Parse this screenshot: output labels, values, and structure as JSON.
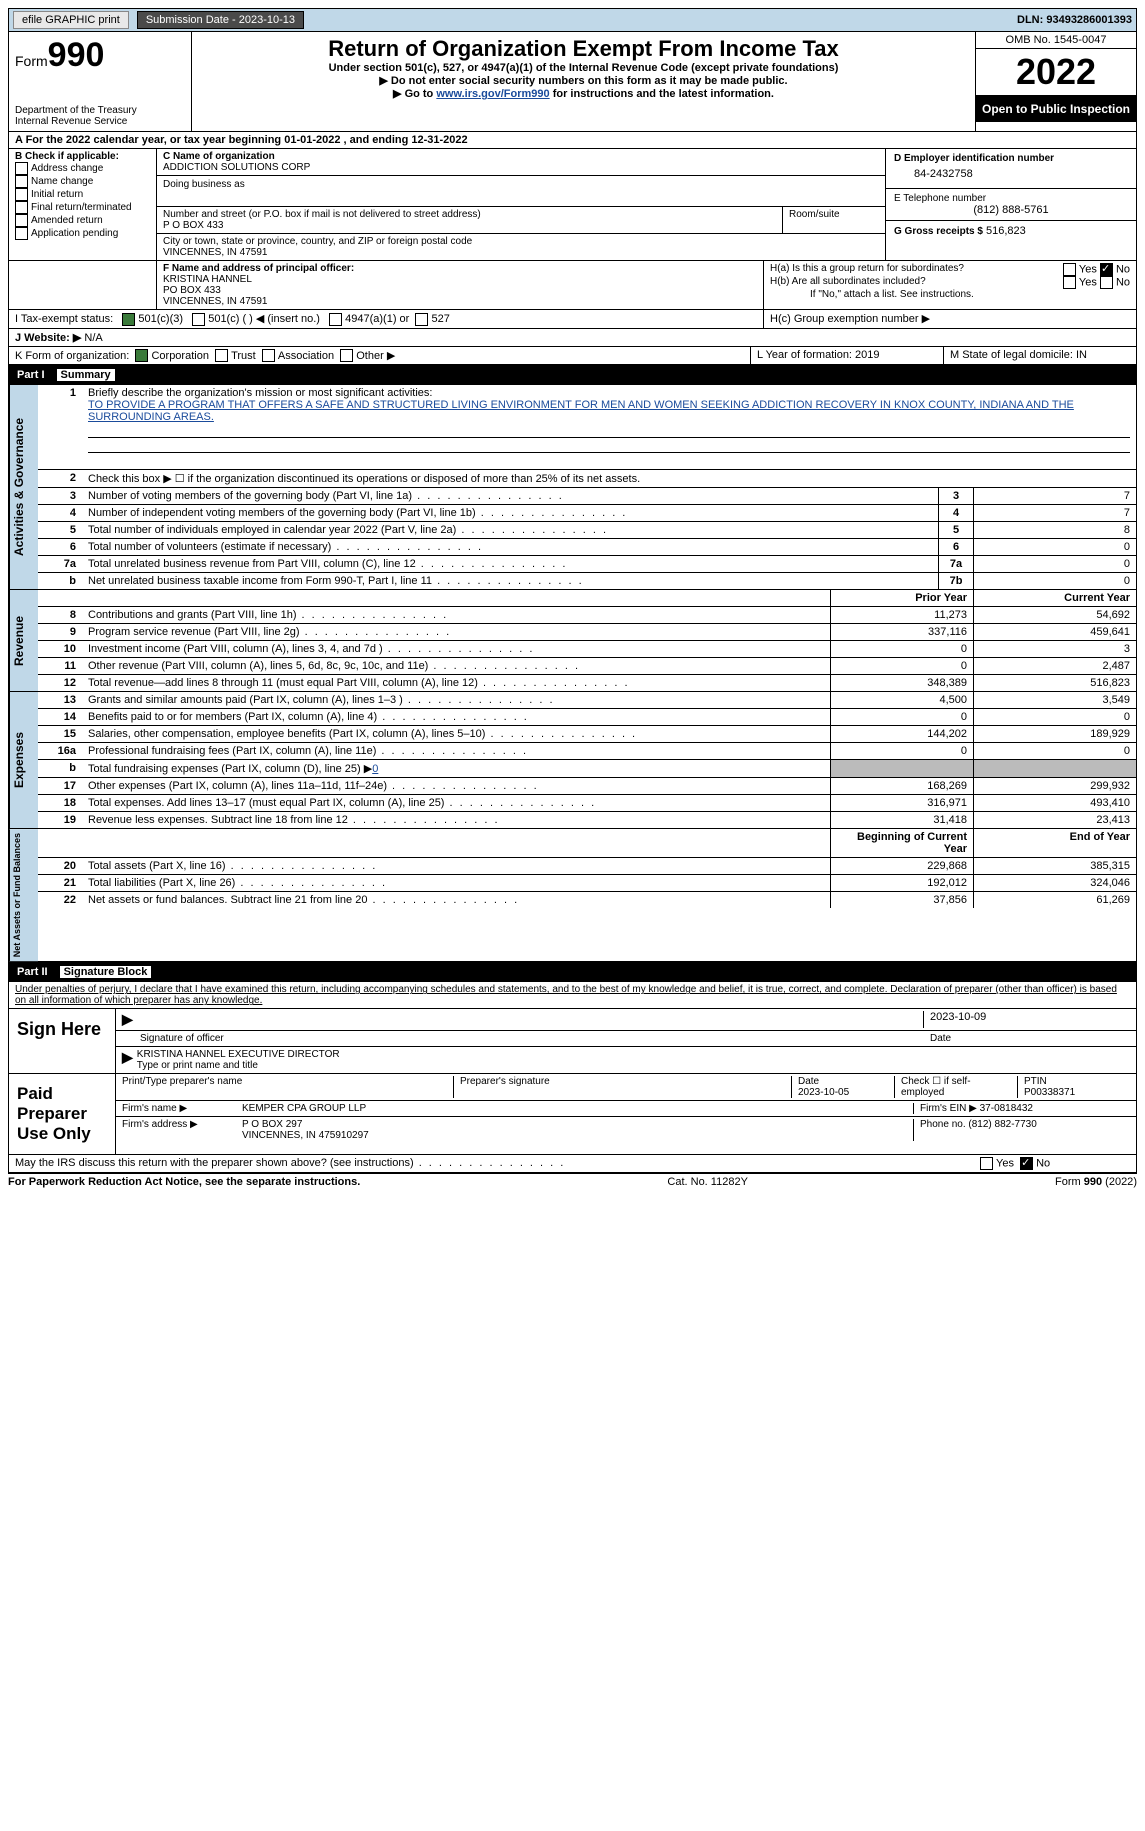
{
  "topbar": {
    "efile": "efile GRAPHIC print",
    "submission": "Submission Date - 2023-10-13",
    "dln": "DLN: 93493286001393"
  },
  "header": {
    "form_label": "Form",
    "form_num": "990",
    "dept": "Department of the Treasury",
    "irs": "Internal Revenue Service",
    "title": "Return of Organization Exempt From Income Tax",
    "sub1": "Under section 501(c), 527, or 4947(a)(1) of the Internal Revenue Code (except private foundations)",
    "sub2": "▶ Do not enter social security numbers on this form as it may be made public.",
    "sub3_pre": "▶ Go to ",
    "sub3_link": "www.irs.gov/Form990",
    "sub3_post": " for instructions and the latest information.",
    "omb": "OMB No. 1545-0047",
    "year": "2022",
    "open": "Open to Public Inspection"
  },
  "periodA": {
    "pre": "A For the 2022 calendar year, or tax year beginning ",
    "b": "01-01-2022",
    "mid": "   , and ending ",
    "e": "12-31-2022"
  },
  "boxB": {
    "label": "B Check if applicable:",
    "items": [
      "Address change",
      "Name change",
      "Initial return",
      "Final return/terminated",
      "Amended return",
      "Application pending"
    ]
  },
  "boxC": {
    "label": "C Name of organization",
    "name": "ADDICTION SOLUTIONS CORP",
    "dba": "Doing business as",
    "addr_label": "Number and street (or P.O. box if mail is not delivered to street address)",
    "room": "Room/suite",
    "addr": "P O BOX 433",
    "city_label": "City or town, state or province, country, and ZIP or foreign postal code",
    "city": "VINCENNES, IN  47591"
  },
  "boxD": {
    "label": "D Employer identification number",
    "val": "84-2432758"
  },
  "boxE": {
    "label": "E Telephone number",
    "val": "(812) 888-5761"
  },
  "boxG": {
    "label": "G Gross receipts $",
    "val": "516,823"
  },
  "boxF": {
    "label": "F  Name and address of principal officer:",
    "name": "KRISTINA HANNEL",
    "addr": "PO BOX 433",
    "city": "VINCENNES, IN  47591"
  },
  "boxH": {
    "a": "H(a)  Is this a group return for subordinates?",
    "b": "H(b)  Are all subordinates included?",
    "note": "If \"No,\" attach a list. See instructions.",
    "c": "H(c)  Group exemption number ▶",
    "yes": "Yes",
    "no": "No"
  },
  "taxexempt": {
    "label": "I   Tax-exempt status:",
    "o1": "501(c)(3)",
    "o2": "501(c) (  ) ◀ (insert no.)",
    "o3": "4947(a)(1) or",
    "o4": "527"
  },
  "website": {
    "label": "J  Website: ▶",
    "val": "  N/A"
  },
  "boxK": {
    "label": "K Form of organization:",
    "o1": "Corporation",
    "o2": "Trust",
    "o3": "Association",
    "o4": "Other ▶"
  },
  "boxL": {
    "label": "L Year of formation: ",
    "val": "2019"
  },
  "boxM": {
    "label": "M State of legal domicile: ",
    "val": "IN"
  },
  "part1": {
    "num": "Part I",
    "title": "Summary"
  },
  "summary": {
    "l1": "Briefly describe the organization's mission or most significant activities:",
    "mission": "TO PROVIDE A PROGRAM THAT OFFERS A SAFE AND STRUCTURED LIVING ENVIRONMENT FOR MEN AND WOMEN SEEKING ADDICTION RECOVERY IN KNOX COUNTY, INDIANA AND THE SURROUNDING AREAS.",
    "l2": "Check this box ▶ ☐  if the organization discontinued its operations or disposed of more than 25% of its net assets.",
    "lines": [
      {
        "n": "3",
        "t": "Number of voting members of the governing body (Part VI, line 1a)",
        "box": "3",
        "v": "7"
      },
      {
        "n": "4",
        "t": "Number of independent voting members of the governing body (Part VI, line 1b)",
        "box": "4",
        "v": "7"
      },
      {
        "n": "5",
        "t": "Total number of individuals employed in calendar year 2022 (Part V, line 2a)",
        "box": "5",
        "v": "8"
      },
      {
        "n": "6",
        "t": "Total number of volunteers (estimate if necessary)",
        "box": "6",
        "v": "0"
      },
      {
        "n": "7a",
        "t": "Total unrelated business revenue from Part VIII, column (C), line 12",
        "box": "7a",
        "v": "0"
      },
      {
        "n": "b",
        "t": "Net unrelated business taxable income from Form 990-T, Part I, line 11",
        "box": "7b",
        "v": "0"
      }
    ],
    "col_prior": "Prior Year",
    "col_curr": "Current Year",
    "rev": [
      {
        "n": "8",
        "t": "Contributions and grants (Part VIII, line 1h)",
        "p": "11,273",
        "c": "54,692"
      },
      {
        "n": "9",
        "t": "Program service revenue (Part VIII, line 2g)",
        "p": "337,116",
        "c": "459,641"
      },
      {
        "n": "10",
        "t": "Investment income (Part VIII, column (A), lines 3, 4, and 7d )",
        "p": "0",
        "c": "3"
      },
      {
        "n": "11",
        "t": "Other revenue (Part VIII, column (A), lines 5, 6d, 8c, 9c, 10c, and 11e)",
        "p": "0",
        "c": "2,487"
      },
      {
        "n": "12",
        "t": "Total revenue—add lines 8 through 11 (must equal Part VIII, column (A), line 12)",
        "p": "348,389",
        "c": "516,823"
      }
    ],
    "exp": [
      {
        "n": "13",
        "t": "Grants and similar amounts paid (Part IX, column (A), lines 1–3 )",
        "p": "4,500",
        "c": "3,549"
      },
      {
        "n": "14",
        "t": "Benefits paid to or for members (Part IX, column (A), line 4)",
        "p": "0",
        "c": "0"
      },
      {
        "n": "15",
        "t": "Salaries, other compensation, employee benefits (Part IX, column (A), lines 5–10)",
        "p": "144,202",
        "c": "189,929"
      },
      {
        "n": "16a",
        "t": "Professional fundraising fees (Part IX, column (A), line 11e)",
        "p": "0",
        "c": "0"
      },
      {
        "n": "b",
        "t": "Total fundraising expenses (Part IX, column (D), line 25) ▶",
        "p": "",
        "c": "",
        "grey": true,
        "fund": "0"
      },
      {
        "n": "17",
        "t": "Other expenses (Part IX, column (A), lines 11a–11d, 11f–24e)",
        "p": "168,269",
        "c": "299,932"
      },
      {
        "n": "18",
        "t": "Total expenses. Add lines 13–17 (must equal Part IX, column (A), line 25)",
        "p": "316,971",
        "c": "493,410"
      },
      {
        "n": "19",
        "t": "Revenue less expenses. Subtract line 18 from line 12",
        "p": "31,418",
        "c": "23,413"
      }
    ],
    "col_beg": "Beginning of Current Year",
    "col_end": "End of Year",
    "net": [
      {
        "n": "20",
        "t": "Total assets (Part X, line 16)",
        "p": "229,868",
        "c": "385,315"
      },
      {
        "n": "21",
        "t": "Total liabilities (Part X, line 26)",
        "p": "192,012",
        "c": "324,046"
      },
      {
        "n": "22",
        "t": "Net assets or fund balances. Subtract line 21 from line 20",
        "p": "37,856",
        "c": "61,269"
      }
    ],
    "sec_act": "Activities & Governance",
    "sec_rev": "Revenue",
    "sec_exp": "Expenses",
    "sec_net": "Net Assets or Fund Balances"
  },
  "part2": {
    "num": "Part II",
    "title": "Signature Block"
  },
  "sig": {
    "decl": "Under penalties of perjury, I declare that I have examined this return, including accompanying schedules and statements, and to the best of my knowledge and belief, it is true, correct, and complete. Declaration of preparer (other than officer) is based on all information of which preparer has any knowledge.",
    "sign_here": "Sign Here",
    "sig_officer": "Signature of officer",
    "date": "Date",
    "sig_date": "2023-10-09",
    "name_title": "KRISTINA HANNEL  EXECUTIVE DIRECTOR",
    "type_name": "Type or print name and title",
    "paid": "Paid Preparer Use Only",
    "prep_name_lbl": "Print/Type preparer's name",
    "prep_sig_lbl": "Preparer's signature",
    "prep_date_lbl": "Date",
    "prep_date": "2023-10-05",
    "check_self": "Check ☐ if self-employed",
    "ptin_lbl": "PTIN",
    "ptin": "P00338371",
    "firm_name_lbl": "Firm's name   ▶",
    "firm_name": "KEMPER CPA GROUP LLP",
    "firm_ein_lbl": "Firm's EIN ▶",
    "firm_ein": "37-0818432",
    "firm_addr_lbl": "Firm's address ▶",
    "firm_addr": "P O BOX 297",
    "firm_city": "VINCENNES, IN  475910297",
    "phone_lbl": "Phone no.",
    "phone": "(812) 882-7730",
    "discuss": "May the IRS discuss this return with the preparer shown above? (see instructions)"
  },
  "footer": {
    "pra": "For Paperwork Reduction Act Notice, see the separate instructions.",
    "cat": "Cat. No. 11282Y",
    "form": "Form 990 (2022)"
  }
}
